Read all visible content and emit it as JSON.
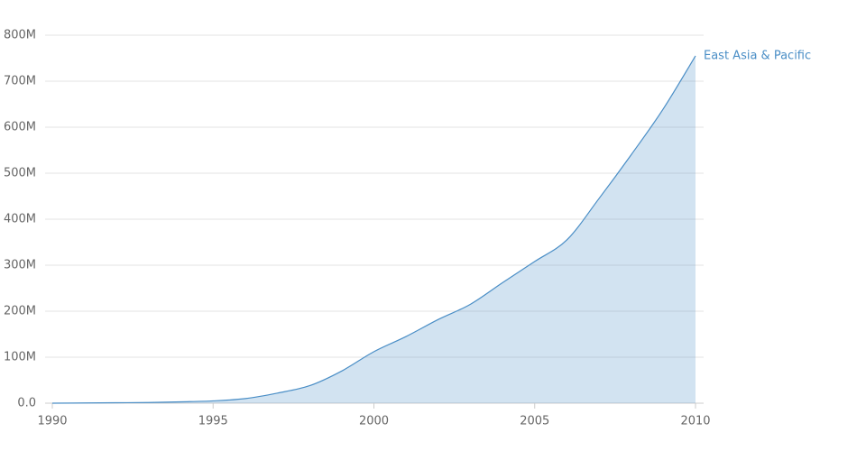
{
  "chart_data": {
    "type": "area",
    "x": [
      1990,
      1991,
      1992,
      1993,
      1994,
      1995,
      1996,
      1997,
      1998,
      1999,
      2000,
      2001,
      2002,
      2003,
      2004,
      2005,
      2006,
      2007,
      2008,
      2009,
      2010
    ],
    "series": [
      {
        "name": "East Asia & Pacific",
        "color": "#4a8ec6",
        "values": [
          0,
          500000,
          1000000,
          1500000,
          3000000,
          5000000,
          10000000,
          22000000,
          38000000,
          70000000,
          112000000,
          145000000,
          182000000,
          215000000,
          262000000,
          308000000,
          355000000,
          445000000,
          540000000,
          640000000,
          755000000
        ]
      }
    ],
    "xlim": [
      1990,
      2010
    ],
    "xticks": [
      1990,
      1995,
      2000,
      2005,
      2010
    ],
    "ylim": [
      0,
      800000000
    ],
    "yticks": [
      {
        "value": 0,
        "label": "0.0"
      },
      {
        "value": 100000000,
        "label": "100M"
      },
      {
        "value": 200000000,
        "label": "200M"
      },
      {
        "value": 300000000,
        "label": "300M"
      },
      {
        "value": 400000000,
        "label": "400M"
      },
      {
        "value": 500000000,
        "label": "500M"
      },
      {
        "value": 600000000,
        "label": "600M"
      },
      {
        "value": 700000000,
        "label": "700M"
      },
      {
        "value": 800000000,
        "label": "800M"
      }
    ],
    "grid": true
  }
}
